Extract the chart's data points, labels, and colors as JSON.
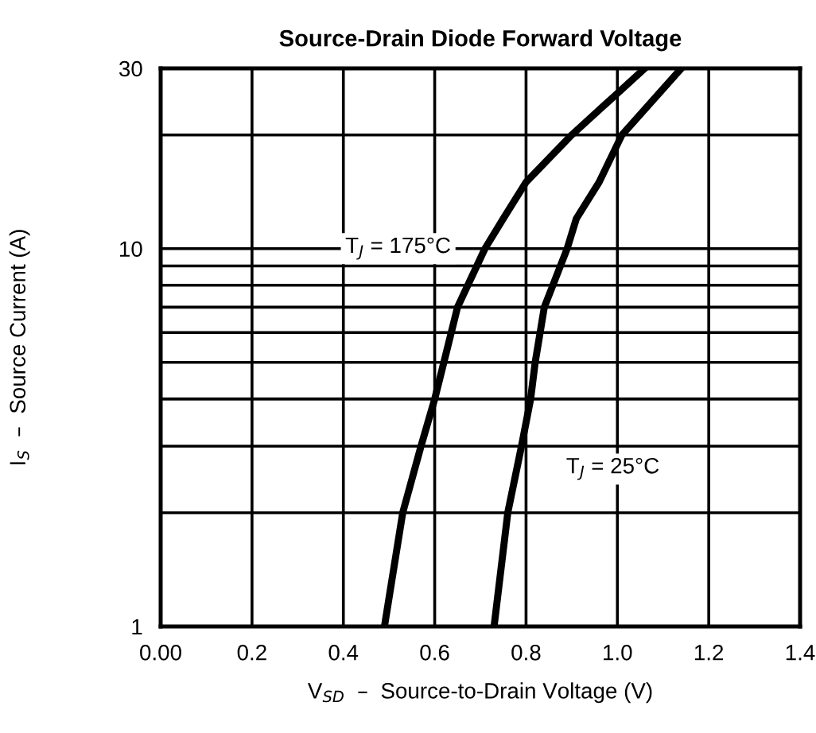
{
  "chart_data": {
    "type": "line",
    "title": "Source-Drain Diode Forward Voltage",
    "xlabel": "V$_{SD}$  –  Source-to-Drain Voltage (V)",
    "ylabel": "I$_{S}$  –  Source Current (A)",
    "log": "y",
    "grid": true,
    "legend": false,
    "marker": "none",
    "line_style": "solid",
    "xlim": [
      0,
      1.4
    ],
    "ylim": [
      1,
      30
    ],
    "xticks": [
      {
        "value": 0,
        "label": "0.00"
      },
      0.2,
      0.4,
      0.6,
      0.8,
      {
        "value": 1,
        "label": "1.0"
      },
      1.2,
      1.4
    ],
    "yticks": [
      1,
      {
        "value": 2,
        "label": null
      },
      {
        "value": 3,
        "label": null
      },
      {
        "value": 4,
        "label": null
      },
      {
        "value": 5,
        "label": null
      },
      {
        "value": 6,
        "label": null
      },
      {
        "value": 7,
        "label": null
      },
      {
        "value": 8,
        "label": null
      },
      {
        "value": 9,
        "label": null
      },
      10,
      {
        "value": 20,
        "label": null
      },
      30
    ],
    "series": [
      {
        "name": "T$_{J}$ = 175°C",
        "color": "#000000",
        "x": [
          0.49,
          0.53,
          0.57,
          0.6,
          0.62,
          0.65,
          0.71,
          0.75,
          0.8,
          0.9,
          1.06
        ],
        "values": [
          1,
          2,
          3,
          4,
          5,
          7,
          10,
          12,
          15,
          20,
          30
        ]
      },
      {
        "name": "T$_{J}$ = 25°C",
        "color": "#000000",
        "x": [
          0.73,
          0.76,
          0.79,
          0.81,
          0.82,
          0.84,
          0.89,
          0.91,
          0.96,
          1.01,
          1.14
        ],
        "values": [
          1,
          2,
          3,
          4,
          5,
          7,
          10,
          12,
          15,
          20,
          30
        ]
      }
    ]
  }
}
